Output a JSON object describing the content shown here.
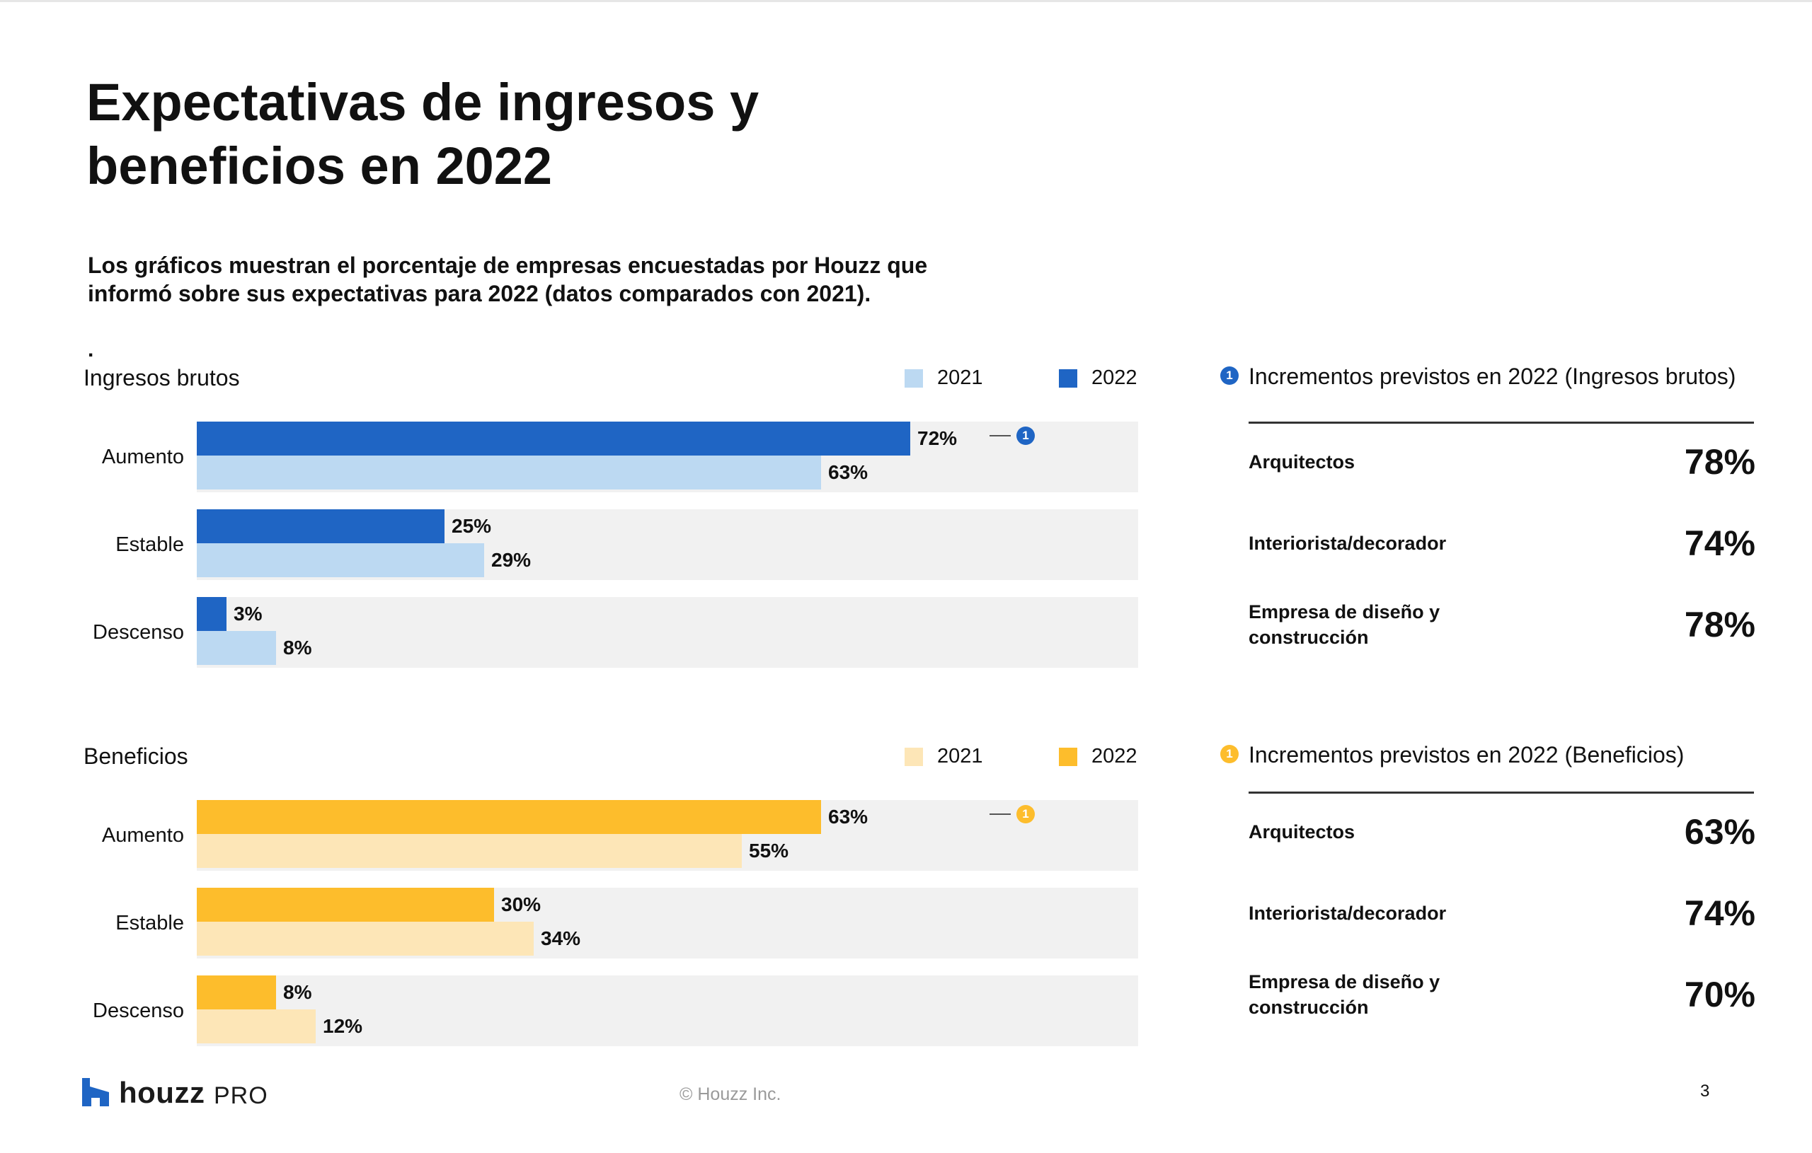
{
  "page": {
    "title_line1": "Expectativas de ingresos y",
    "title_line2": "beneficios en 2022",
    "subtitle_line1": "Los gráficos muestran el porcentaje de empresas encuestadas por Houzz que",
    "subtitle_line2": "informó sobre sus expectativas para 2022 (datos comparados con 2021).",
    "stray_mark": "."
  },
  "colors": {
    "revenue_2022": "#1f65c4",
    "revenue_2021": "#bcd9f2",
    "profit_2022": "#fdbd2c",
    "profit_2021": "#fde6b7",
    "track": "#f1f1f1"
  },
  "chart_data": [
    {
      "type": "bar",
      "orientation": "horizontal",
      "title": "Ingresos brutos",
      "categories": [
        "Aumento",
        "Estable",
        "Descenso"
      ],
      "series": [
        {
          "name": "2022",
          "values": [
            72,
            25,
            3
          ]
        },
        {
          "name": "2021",
          "values": [
            63,
            29,
            8
          ]
        }
      ],
      "value_labels": {
        "2022": [
          "72%",
          "25%",
          "3%"
        ],
        "2021": [
          "63%",
          "29%",
          "8%"
        ]
      },
      "xlim": [
        0,
        95
      ],
      "grid": false,
      "legend": {
        "position": "top-right",
        "entries": [
          "2021",
          "2022"
        ]
      },
      "annotation": {
        "badge": "1",
        "category": "Aumento"
      }
    },
    {
      "type": "bar",
      "orientation": "horizontal",
      "title": "Beneficios",
      "categories": [
        "Aumento",
        "Estable",
        "Descenso"
      ],
      "series": [
        {
          "name": "2022",
          "values": [
            63,
            30,
            8
          ]
        },
        {
          "name": "2021",
          "values": [
            55,
            34,
            12
          ]
        }
      ],
      "value_labels": {
        "2022": [
          "63%",
          "30%",
          "8%"
        ],
        "2021": [
          "55%",
          "34%",
          "12%"
        ]
      },
      "xlim": [
        0,
        95
      ],
      "grid": false,
      "legend": {
        "position": "top-right",
        "entries": [
          "2021",
          "2022"
        ]
      },
      "annotation": {
        "badge": "1",
        "category": "Aumento"
      }
    }
  ],
  "panels": {
    "revenue": {
      "badge": "1",
      "heading": "Incrementos previstos en 2022 (Ingresos brutos)",
      "rows": [
        {
          "label_line1": "Arquitectos",
          "label_line2": "",
          "value": "78%"
        },
        {
          "label_line1": "Interiorista/decorador",
          "label_line2": "",
          "value": "74%"
        },
        {
          "label_line1": "Empresa de diseño y",
          "label_line2": "construcción",
          "value": "78%"
        }
      ]
    },
    "profit": {
      "badge": "1",
      "heading": "Incrementos previstos en 2022 (Beneficios)",
      "rows": [
        {
          "label_line1": "Arquitectos",
          "label_line2": "",
          "value": "63%"
        },
        {
          "label_line1": "Interiorista/decorador",
          "label_line2": "",
          "value": "74%"
        },
        {
          "label_line1": "Empresa de diseño y",
          "label_line2": "construcción",
          "value": "70%"
        }
      ]
    }
  },
  "footer": {
    "logo_word": "houzz",
    "logo_suffix": "PRO",
    "logo_icon": "houzz-house-icon",
    "copyright": "© Houzz Inc.",
    "page_number": "3"
  }
}
